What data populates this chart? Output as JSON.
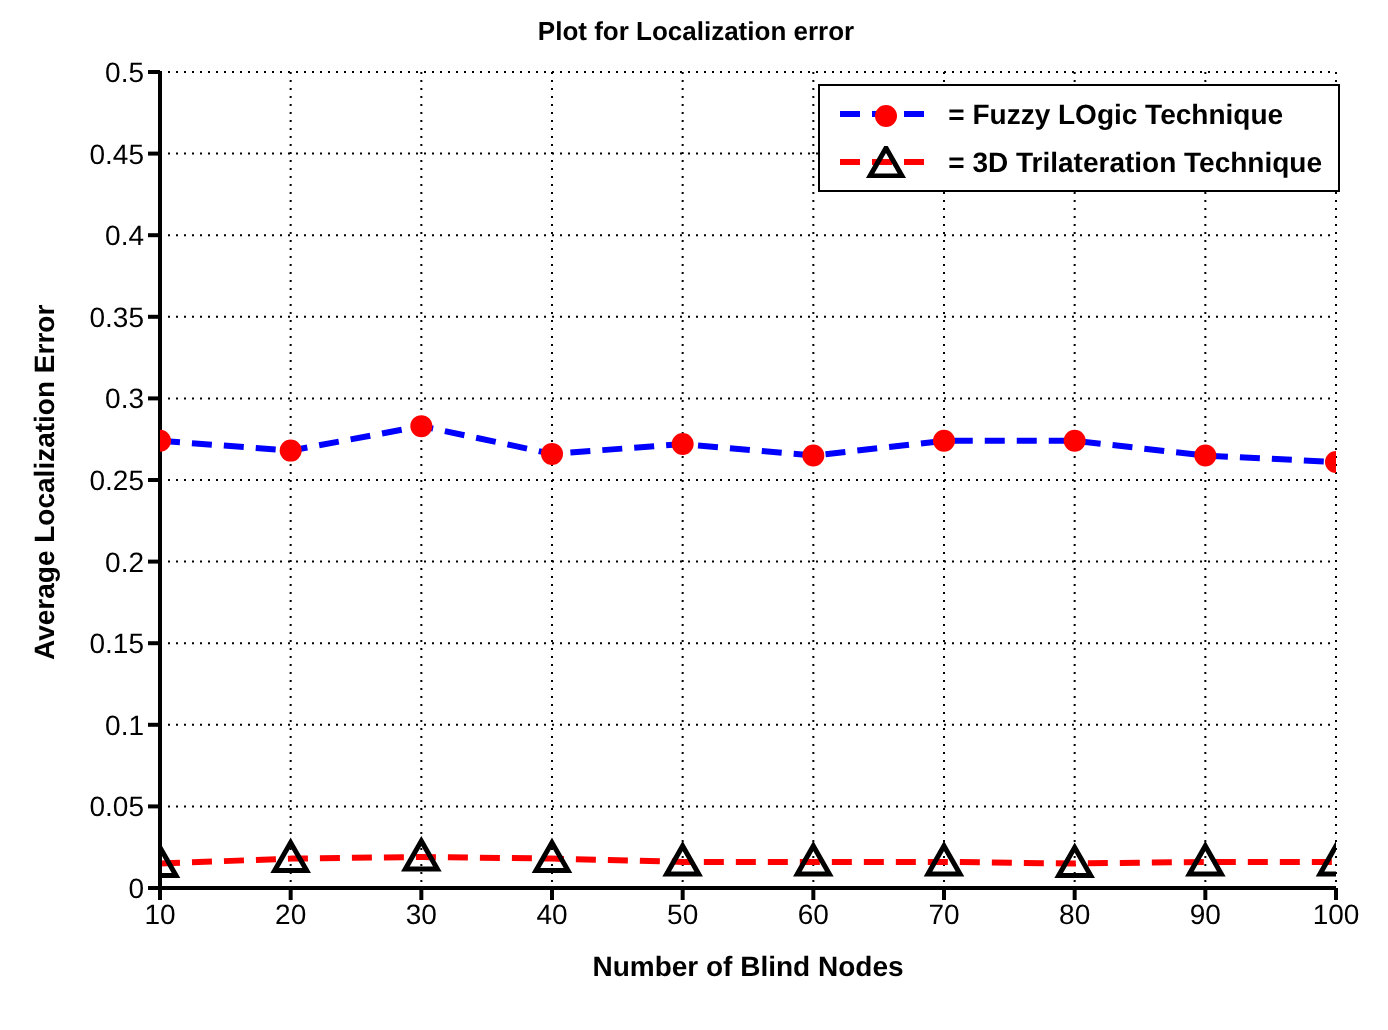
{
  "chart_data": {
    "type": "line",
    "title": "Plot for Localization error",
    "xlabel": "Number of Blind Nodes",
    "ylabel": "Average Localization Error",
    "x": [
      10,
      20,
      30,
      40,
      50,
      60,
      70,
      80,
      90,
      100
    ],
    "series": [
      {
        "name": "= Fuzzy LOgic Technique",
        "color": "#0000ff",
        "marker": "circle",
        "values": [
          0.274,
          0.268,
          0.283,
          0.266,
          0.272,
          0.265,
          0.274,
          0.274,
          0.265,
          0.261
        ]
      },
      {
        "name": "= 3D Trilateration Technique",
        "color": "#ff0000",
        "marker": "triangle",
        "values": [
          0.015,
          0.018,
          0.019,
          0.018,
          0.016,
          0.016,
          0.016,
          0.015,
          0.016,
          0.016
        ]
      }
    ],
    "xlim": [
      10,
      100
    ],
    "xticks": [
      10,
      20,
      30,
      40,
      50,
      60,
      70,
      80,
      90,
      100
    ],
    "ylim": [
      0,
      0.5
    ],
    "yticks": [
      0,
      0.05,
      0.1,
      0.15,
      0.2,
      0.25,
      0.3,
      0.35,
      0.4,
      0.45,
      0.5
    ],
    "grid": true,
    "legend": "top right",
    "line_style": "dashed"
  }
}
